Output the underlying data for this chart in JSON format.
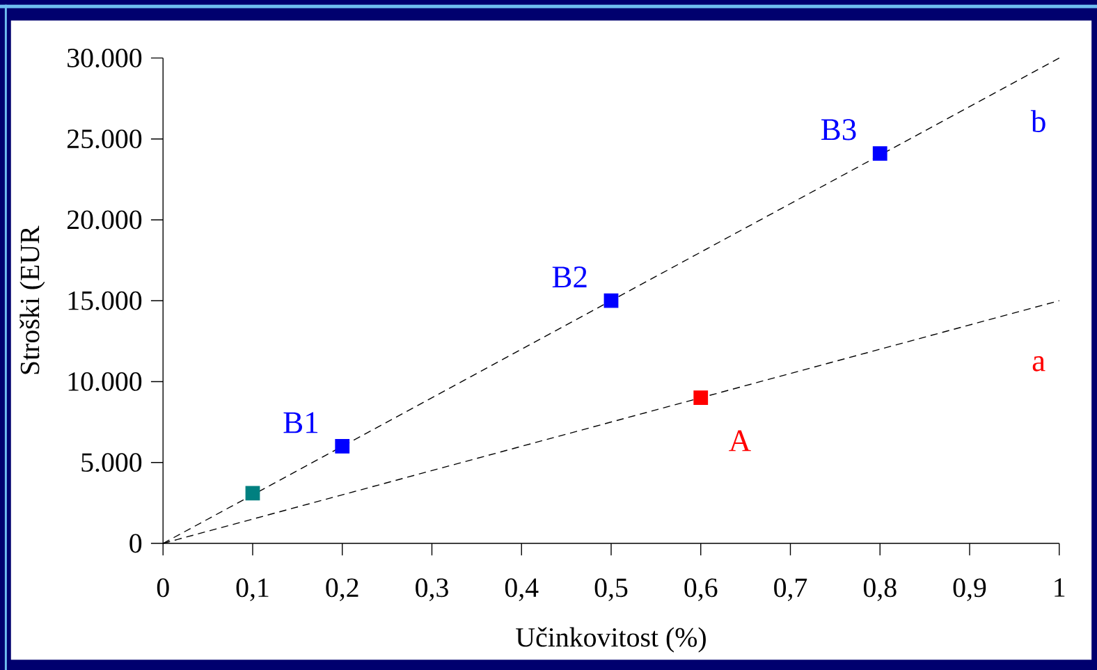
{
  "chart_data": {
    "type": "scatter",
    "xlabel": "Učinkovitost (%)",
    "ylabel": "Stroški (EUR",
    "xlim": [
      0,
      1
    ],
    "ylim": [
      0,
      30000
    ],
    "xticks": [
      0,
      {
        "value": 0.1,
        "label": "0,1"
      },
      {
        "value": 0.2,
        "label": "0,2"
      },
      {
        "value": 0.3,
        "label": "0,3"
      },
      {
        "value": 0.4,
        "label": "0,4"
      },
      {
        "value": 0.5,
        "label": "0,5"
      },
      {
        "value": 0.6,
        "label": "0,6"
      },
      {
        "value": 0.7,
        "label": "0,7"
      },
      {
        "value": 0.8,
        "label": "0,8"
      },
      {
        "value": 0.9,
        "label": "0,9"
      },
      1
    ],
    "yticks": [
      0,
      {
        "value": 5000,
        "label": "5.000"
      },
      {
        "value": 10000,
        "label": "10.000"
      },
      {
        "value": 15000,
        "label": "15.000"
      },
      {
        "value": 20000,
        "label": "20.000"
      },
      {
        "value": 25000,
        "label": "25.000"
      },
      {
        "value": 30000,
        "label": "30.000"
      }
    ],
    "grid": false,
    "marker": "square",
    "series": [
      {
        "type": "line",
        "color": "#000000",
        "line_style": "dashed",
        "marker": "none",
        "x": [
          0,
          1
        ],
        "values": [
          0,
          30000
        ]
      },
      {
        "type": "line",
        "color": "#000000",
        "line_style": "dashed",
        "marker": "none",
        "x": [
          0,
          1
        ],
        "values": [
          0,
          15000
        ]
      },
      {
        "type": "scatter",
        "color": "#008080",
        "x": [
          0.1
        ],
        "values": [
          3100
        ]
      },
      {
        "type": "scatter",
        "color": "#0000ff",
        "x": [
          0.2,
          0.5,
          0.8
        ],
        "values": [
          6000,
          15000,
          24100
        ]
      },
      {
        "type": "scatter",
        "color": "#ff0000",
        "x": [
          0.6
        ],
        "values": [
          9000
        ]
      }
    ],
    "annotations": [
      {
        "text": "B1",
        "x": 0.2,
        "y": 6000
      },
      {
        "text": "B2",
        "x": 0.5,
        "y": 15000
      },
      {
        "text": "B3",
        "x": 0.8,
        "y": 24100
      },
      {
        "text": "A",
        "x": 0.6,
        "y": 9000
      },
      "b",
      "a"
    ]
  }
}
